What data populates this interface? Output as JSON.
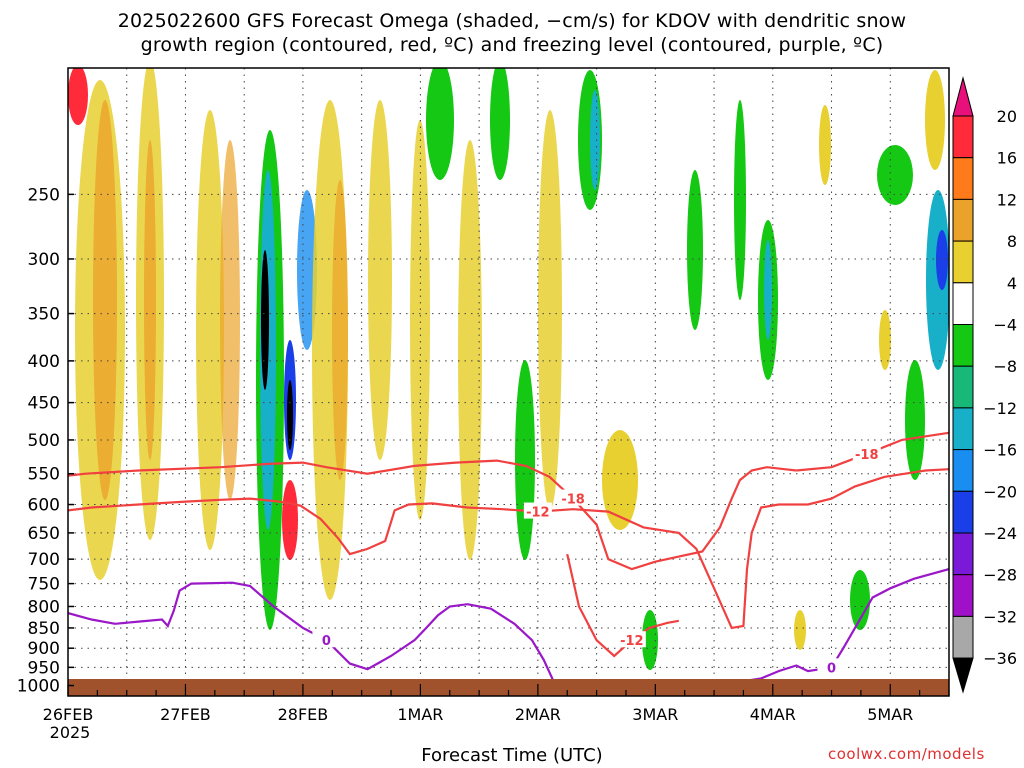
{
  "chart_data": {
    "type": "heatmap",
    "title_line1": "2025022600 GFS Forecast Omega (shaded, −cm/s) for KDOV with dendritic snow",
    "title_line2": "growth region (contoured, red, ºC) and freezing level (contoured, purple, ºC)",
    "xlabel": "Forecast Time (UTC)",
    "x_ticks": [
      {
        "label": "26FEB",
        "sub": "2025",
        "day": 0
      },
      {
        "label": "27FEB",
        "day": 1
      },
      {
        "label": "28FEB",
        "day": 2
      },
      {
        "label": "1MAR",
        "day": 3
      },
      {
        "label": "2MAR",
        "day": 4
      },
      {
        "label": "3MAR",
        "day": 5
      },
      {
        "label": "4MAR",
        "day": 6
      },
      {
        "label": "5MAR",
        "day": 7
      }
    ],
    "x_range_days": [
      0,
      7.5
    ],
    "y_ticks": [
      250,
      300,
      350,
      400,
      450,
      500,
      550,
      600,
      650,
      700,
      750,
      800,
      850,
      900,
      950,
      1000
    ],
    "y_range_hpa": [
      175,
      1030
    ],
    "y_scale": "log-pressure",
    "colorbar": {
      "labels": [
        "20",
        "16",
        "12",
        "8",
        "4",
        "−4",
        "−8",
        "−12",
        "−16",
        "−20",
        "−24",
        "−28",
        "−32",
        "−36"
      ],
      "colors": [
        "#ff2a3a",
        "#ff7a1a",
        "#eba22a",
        "#e8d030",
        "#ffffff",
        "#14c814",
        "#18b878",
        "#18b0c8",
        "#1a8ef0",
        "#1a3ee8",
        "#7a1ad8",
        "#a010c8",
        "#a8a8a8"
      ],
      "top_arrow_color": "#e8107a",
      "bottom_arrow_color": "#000000"
    },
    "dendritic_contours": [
      {
        "label": "-18",
        "points": [
          [
            0,
            553
          ],
          [
            0.15,
            550
          ],
          [
            0.6,
            545
          ],
          [
            1.3,
            540
          ],
          [
            1.7,
            535
          ],
          [
            2.0,
            533
          ],
          [
            2.2,
            540
          ],
          [
            2.55,
            550
          ],
          [
            2.95,
            538
          ],
          [
            3.3,
            533
          ],
          [
            3.65,
            530
          ],
          [
            3.9,
            538
          ],
          [
            4.1,
            555
          ],
          [
            4.3,
            590
          ],
          [
            4.5,
            635
          ],
          [
            4.6,
            700
          ],
          [
            4.8,
            720
          ],
          [
            5.0,
            705
          ],
          [
            5.2,
            695
          ],
          [
            5.4,
            685
          ],
          [
            5.55,
            640
          ],
          [
            5.65,
            590
          ],
          [
            5.72,
            560
          ],
          [
            5.82,
            545
          ],
          [
            5.95,
            540
          ],
          [
            6.1,
            543
          ],
          [
            6.2,
            545
          ]
        ]
      },
      {
        "label": "-12",
        "points": [
          [
            0,
            610
          ],
          [
            0.2,
            605
          ],
          [
            0.6,
            600
          ],
          [
            1.0,
            595
          ],
          [
            1.3,
            592
          ],
          [
            1.55,
            590
          ],
          [
            1.8,
            595
          ],
          [
            1.98,
            602
          ],
          [
            2.15,
            625
          ],
          [
            2.3,
            660
          ],
          [
            2.4,
            690
          ],
          [
            2.55,
            680
          ],
          [
            2.7,
            665
          ],
          [
            2.78,
            610
          ],
          [
            2.9,
            600
          ],
          [
            3.1,
            598
          ],
          [
            3.4,
            605
          ],
          [
            3.7,
            608
          ],
          [
            4.0,
            612
          ],
          [
            4.3,
            608
          ],
          [
            4.6,
            612
          ],
          [
            4.9,
            640
          ],
          [
            5.2,
            650
          ],
          [
            5.35,
            680
          ],
          [
            5.5,
            760
          ],
          [
            5.65,
            850
          ],
          [
            5.75,
            845
          ],
          [
            5.78,
            720
          ],
          [
            5.82,
            650
          ],
          [
            5.9,
            605
          ],
          [
            6.05,
            600
          ],
          [
            6.3,
            600
          ],
          [
            6.5,
            590
          ],
          [
            6.7,
            570
          ],
          [
            6.95,
            555
          ],
          [
            7.3,
            545
          ],
          [
            7.5,
            543
          ]
        ]
      },
      {
        "label": "-18",
        "points": [
          [
            6.2,
            545
          ],
          [
            6.5,
            540
          ],
          [
            6.8,
            520
          ],
          [
            7.1,
            500
          ],
          [
            7.5,
            490
          ]
        ]
      },
      {
        "label": "-12",
        "points": [
          [
            4.25,
            690
          ],
          [
            4.35,
            800
          ],
          [
            4.5,
            880
          ],
          [
            4.65,
            920
          ],
          [
            4.8,
            880
          ],
          [
            4.95,
            850
          ],
          [
            5.1,
            838
          ],
          [
            5.2,
            833
          ]
        ]
      }
    ],
    "freezing_contours": [
      {
        "label": "0",
        "points": [
          [
            0,
            815
          ],
          [
            0.2,
            830
          ],
          [
            0.4,
            840
          ],
          [
            0.6,
            835
          ],
          [
            0.8,
            830
          ],
          [
            0.85,
            845
          ],
          [
            0.9,
            810
          ],
          [
            0.95,
            765
          ],
          [
            1.05,
            750
          ],
          [
            1.4,
            748
          ],
          [
            1.55,
            755
          ],
          [
            1.75,
            800
          ],
          [
            2.0,
            850
          ],
          [
            2.2,
            880
          ],
          [
            2.4,
            940
          ],
          [
            2.55,
            955
          ],
          [
            2.75,
            920
          ],
          [
            2.95,
            880
          ],
          [
            3.05,
            850
          ],
          [
            3.15,
            820
          ],
          [
            3.25,
            800
          ],
          [
            3.4,
            795
          ],
          [
            3.6,
            805
          ],
          [
            3.8,
            840
          ],
          [
            3.95,
            880
          ],
          [
            4.05,
            930
          ],
          [
            4.15,
            1000
          ]
        ]
      },
      {
        "label": "0",
        "points": [
          [
            4.8,
            1020
          ],
          [
            5.0,
            1005
          ],
          [
            5.15,
            1010
          ]
        ]
      },
      {
        "label": "0",
        "points": [
          [
            5.55,
            1020
          ],
          [
            5.7,
            990
          ],
          [
            5.9,
            980
          ],
          [
            6.05,
            960
          ],
          [
            6.2,
            945
          ],
          [
            6.3,
            960
          ],
          [
            6.5,
            950
          ],
          [
            6.6,
            900
          ],
          [
            6.7,
            850
          ],
          [
            6.85,
            780
          ],
          [
            7.0,
            760
          ],
          [
            7.2,
            740
          ],
          [
            7.5,
            720
          ]
        ]
      }
    ]
  }
}
